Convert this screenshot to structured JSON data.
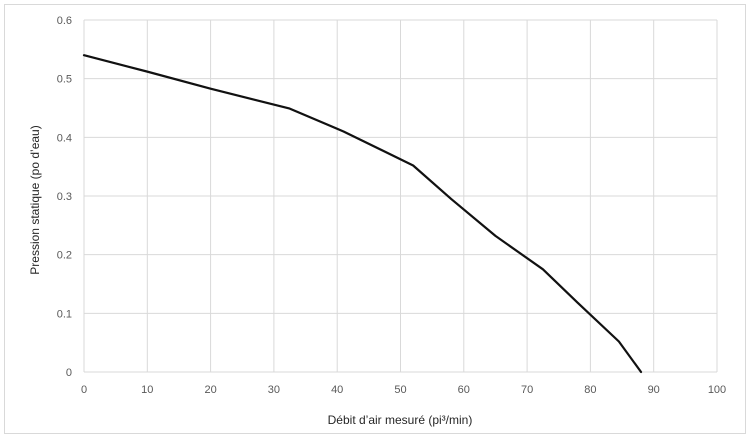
{
  "chart_data": {
    "type": "line",
    "title": "",
    "xlabel": "Débit d’air mesuré (pi³/min)",
    "ylabel": "Pression statique (po d’eau)",
    "xlim": [
      0,
      100
    ],
    "ylim": [
      0,
      0.6
    ],
    "x_ticks": [
      0,
      10,
      20,
      30,
      40,
      50,
      60,
      70,
      80,
      90,
      100
    ],
    "y_ticks": [
      0,
      0.1,
      0.2,
      0.3,
      0.4,
      0.5,
      0.6
    ],
    "x_tick_labels": [
      "0",
      "10",
      "20",
      "30",
      "40",
      "50",
      "60",
      "70",
      "80",
      "90",
      "100"
    ],
    "y_tick_labels": [
      "0",
      "0.1",
      "0.2",
      "0.3",
      "0.4",
      "0.5",
      "0.6"
    ],
    "grid": true,
    "legend": "none",
    "series": [
      {
        "color": "#111111",
        "x": [
          0,
          10,
          20,
          32.5,
          41,
          52,
          58,
          65,
          72.5,
          78,
          84.5,
          88
        ],
        "y": [
          0.54,
          0.512,
          0.483,
          0.449,
          0.41,
          0.352,
          0.295,
          0.232,
          0.175,
          0.118,
          0.052,
          0
        ]
      }
    ]
  },
  "colors": {
    "grid": "#d9d9d9",
    "axis_text": "#595959",
    "line": "#111111"
  }
}
